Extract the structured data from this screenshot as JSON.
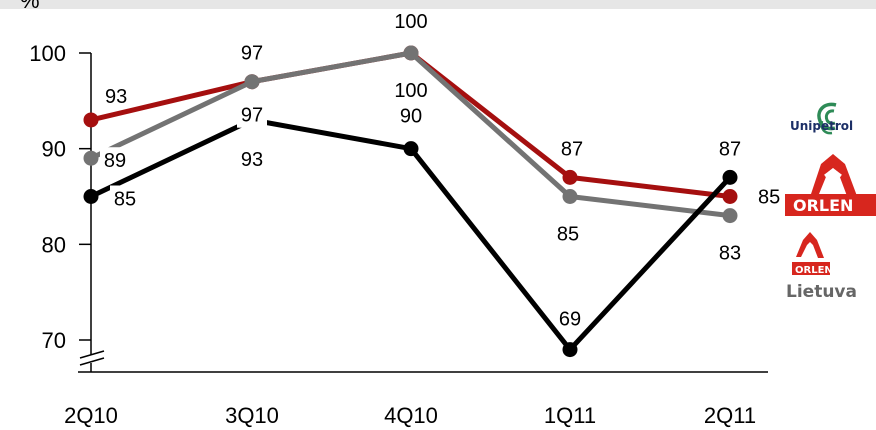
{
  "chart_data": {
    "type": "line",
    "unit_label": "%",
    "categories": [
      "2Q10",
      "3Q10",
      "4Q10",
      "1Q11",
      "2Q11"
    ],
    "yticks": [
      70,
      80,
      90,
      100
    ],
    "ylim": [
      67,
      105
    ],
    "grid": false,
    "axis_break": true,
    "series": [
      {
        "values": [
          93,
          97,
          100,
          87,
          85
        ],
        "color": "#a50f0f",
        "logo": "ORLEN"
      },
      {
        "values": [
          89,
          97,
          100,
          85,
          83
        ],
        "color": "#737373",
        "logo": "Unipetrol"
      },
      {
        "values": [
          85,
          93,
          90,
          69,
          87
        ],
        "color": "#000000",
        "logo": "ORLEN Lietuva"
      }
    ],
    "data_labels": [
      {
        "text": "93",
        "series": 0,
        "index": 0,
        "boxed": false
      },
      {
        "text": "97",
        "series": 0,
        "index": 1,
        "boxed": false
      },
      {
        "text": "100",
        "series": 0,
        "index": 2,
        "boxed": false
      },
      {
        "text": "87",
        "series": 0,
        "index": 3,
        "boxed": false
      },
      {
        "text": "85",
        "series": 0,
        "index": 4,
        "boxed": false
      },
      {
        "text": "89",
        "series": 1,
        "index": 0,
        "boxed": true
      },
      {
        "text": "97",
        "series": 1,
        "index": 1,
        "boxed": true
      },
      {
        "text": "100",
        "series": 1,
        "index": 2,
        "boxed": false
      },
      {
        "text": "85",
        "series": 1,
        "index": 3,
        "boxed": false
      },
      {
        "text": "83",
        "series": 1,
        "index": 4,
        "boxed": false
      },
      {
        "text": "85",
        "series": 2,
        "index": 0,
        "boxed": true
      },
      {
        "text": "93",
        "series": 2,
        "index": 1,
        "boxed": false
      },
      {
        "text": "90",
        "series": 2,
        "index": 2,
        "boxed": false
      },
      {
        "text": "69",
        "series": 2,
        "index": 3,
        "boxed": false
      },
      {
        "text": "87",
        "series": 2,
        "index": 4,
        "boxed": false
      }
    ]
  },
  "logos": {
    "unipetrol": "Unipetrol",
    "orlen": "ORLEN",
    "orlen_small": "ORLEN",
    "lietuva": "Lietuva"
  },
  "colors": {
    "orlen_red": "#d7261e",
    "unipetrol_green": "#2e8b57",
    "unipetrol_blue": "#1c2f66"
  }
}
